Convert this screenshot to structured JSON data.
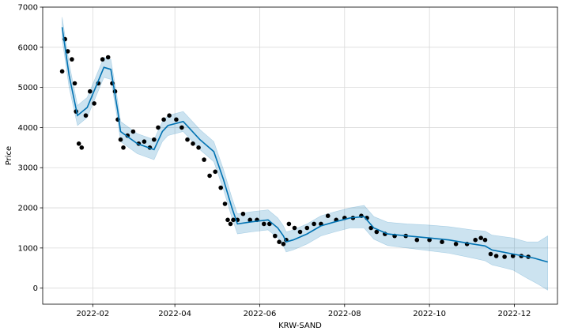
{
  "chart_data": {
    "type": "line",
    "xlabel": "KRW-SAND",
    "ylabel": "Price",
    "grid": true,
    "xlim": [
      "2021-12-27",
      "2023-01-01"
    ],
    "ylim": [
      -400,
      7000
    ],
    "x_ticks": [
      "2022-02",
      "2022-04",
      "2022-06",
      "2022-08",
      "2022-10",
      "2022-12"
    ],
    "y_ticks": [
      0,
      1000,
      2000,
      3000,
      4000,
      5000,
      6000,
      7000
    ],
    "series": [
      {
        "role": "observed",
        "style": "points",
        "color": "#000000",
        "x": [
          "2022-01-10",
          "2022-01-12",
          "2022-01-14",
          "2022-01-17",
          "2022-01-19",
          "2022-01-20",
          "2022-01-22",
          "2022-01-24",
          "2022-01-27",
          "2022-01-30",
          "2022-02-02",
          "2022-02-05",
          "2022-02-08",
          "2022-02-12",
          "2022-02-15",
          "2022-02-17",
          "2022-02-19",
          "2022-02-21",
          "2022-02-23",
          "2022-02-26",
          "2022-03-02",
          "2022-03-06",
          "2022-03-10",
          "2022-03-14",
          "2022-03-17",
          "2022-03-20",
          "2022-03-24",
          "2022-03-28",
          "2022-04-02",
          "2022-04-06",
          "2022-04-10",
          "2022-04-14",
          "2022-04-18",
          "2022-04-22",
          "2022-04-26",
          "2022-04-30",
          "2022-05-04",
          "2022-05-07",
          "2022-05-09",
          "2022-05-11",
          "2022-05-13",
          "2022-05-16",
          "2022-05-20",
          "2022-05-25",
          "2022-05-30",
          "2022-06-04",
          "2022-06-08",
          "2022-06-12",
          "2022-06-15",
          "2022-06-18",
          "2022-06-20",
          "2022-06-22",
          "2022-06-26",
          "2022-06-30",
          "2022-07-05",
          "2022-07-10",
          "2022-07-15",
          "2022-07-20",
          "2022-07-26",
          "2022-08-01",
          "2022-08-07",
          "2022-08-13",
          "2022-08-17",
          "2022-08-20",
          "2022-08-24",
          "2022-08-30",
          "2022-09-06",
          "2022-09-14",
          "2022-09-22",
          "2022-10-01",
          "2022-10-10",
          "2022-10-20",
          "2022-10-28",
          "2022-11-03",
          "2022-11-07",
          "2022-11-10",
          "2022-11-14",
          "2022-11-18",
          "2022-11-24",
          "2022-11-30",
          "2022-12-06",
          "2022-12-11"
        ],
        "values": [
          5400,
          6200,
          5900,
          5700,
          5100,
          4400,
          3600,
          3500,
          4300,
          4900,
          4600,
          5100,
          5700,
          5750,
          5100,
          4900,
          4200,
          3700,
          3500,
          3800,
          3900,
          3600,
          3650,
          3500,
          3700,
          4000,
          4200,
          4300,
          4200,
          4000,
          3700,
          3600,
          3500,
          3200,
          2800,
          2900,
          2500,
          2100,
          1700,
          1600,
          1700,
          1700,
          1850,
          1700,
          1700,
          1600,
          1600,
          1300,
          1150,
          1100,
          1200,
          1600,
          1500,
          1400,
          1500,
          1600,
          1600,
          1800,
          1700,
          1750,
          1750,
          1800,
          1750,
          1500,
          1400,
          1350,
          1300,
          1300,
          1200,
          1200,
          1150,
          1100,
          1100,
          1200,
          1250,
          1200,
          850,
          800,
          780,
          800,
          800,
          780
        ]
      },
      {
        "role": "forecast",
        "style": "line",
        "color": "#0072b2",
        "x": [
          "2022-01-10",
          "2022-01-15",
          "2022-01-21",
          "2022-01-28",
          "2022-02-03",
          "2022-02-09",
          "2022-02-14",
          "2022-02-19",
          "2022-02-21",
          "2022-03-05",
          "2022-03-17",
          "2022-03-23",
          "2022-03-27",
          "2022-04-07",
          "2022-04-19",
          "2022-04-29",
          "2022-05-06",
          "2022-05-12",
          "2022-05-16",
          "2022-05-26",
          "2022-06-07",
          "2022-06-14",
          "2022-06-18",
          "2022-06-20",
          "2022-06-25",
          "2022-07-05",
          "2022-07-15",
          "2022-07-25",
          "2022-08-05",
          "2022-08-15",
          "2022-08-22",
          "2022-09-01",
          "2022-09-15",
          "2022-10-01",
          "2022-10-15",
          "2022-11-01",
          "2022-11-10",
          "2022-11-15",
          "2022-11-30",
          "2022-12-15",
          "2022-12-25"
        ],
        "values": [
          6500,
          5300,
          4300,
          4500,
          5000,
          5500,
          5450,
          4400,
          3900,
          3600,
          3450,
          3900,
          4050,
          4150,
          3700,
          3400,
          2700,
          2000,
          1600,
          1650,
          1700,
          1500,
          1300,
          1150,
          1200,
          1350,
          1550,
          1650,
          1750,
          1780,
          1500,
          1350,
          1300,
          1250,
          1200,
          1100,
          1050,
          950,
          850,
          750,
          650
        ]
      }
    ],
    "uncertainty_band": {
      "color": "#0072b2",
      "x": [
        "2022-01-10",
        "2022-01-15",
        "2022-01-21",
        "2022-01-28",
        "2022-02-03",
        "2022-02-09",
        "2022-02-14",
        "2022-02-19",
        "2022-02-21",
        "2022-03-05",
        "2022-03-17",
        "2022-03-23",
        "2022-03-27",
        "2022-04-07",
        "2022-04-19",
        "2022-04-29",
        "2022-05-06",
        "2022-05-12",
        "2022-05-16",
        "2022-05-26",
        "2022-06-07",
        "2022-06-14",
        "2022-06-18",
        "2022-06-20",
        "2022-06-25",
        "2022-07-05",
        "2022-07-15",
        "2022-07-25",
        "2022-08-05",
        "2022-08-15",
        "2022-08-22",
        "2022-09-01",
        "2022-09-15",
        "2022-10-01",
        "2022-10-15",
        "2022-11-01",
        "2022-11-10",
        "2022-11-15",
        "2022-11-30",
        "2022-12-10",
        "2022-12-18",
        "2022-12-25"
      ],
      "lower": [
        6200,
        5000,
        4050,
        4250,
        4750,
        5250,
        5200,
        4150,
        3650,
        3350,
        3200,
        3650,
        3800,
        3900,
        3450,
        3150,
        2450,
        1750,
        1350,
        1400,
        1450,
        1250,
        1050,
        900,
        950,
        1100,
        1300,
        1400,
        1500,
        1500,
        1220,
        1060,
        1000,
        930,
        870,
        750,
        680,
        580,
        450,
        250,
        100,
        -50
      ],
      "upper": [
        6750,
        5600,
        4550,
        4750,
        5250,
        5750,
        5700,
        4650,
        4150,
        3850,
        3700,
        4150,
        4300,
        4400,
        3950,
        3650,
        2950,
        2250,
        1850,
        1900,
        1950,
        1750,
        1550,
        1400,
        1450,
        1600,
        1800,
        1900,
        2000,
        2060,
        1780,
        1640,
        1600,
        1570,
        1530,
        1450,
        1420,
        1320,
        1250,
        1150,
        1150,
        1300
      ]
    }
  }
}
